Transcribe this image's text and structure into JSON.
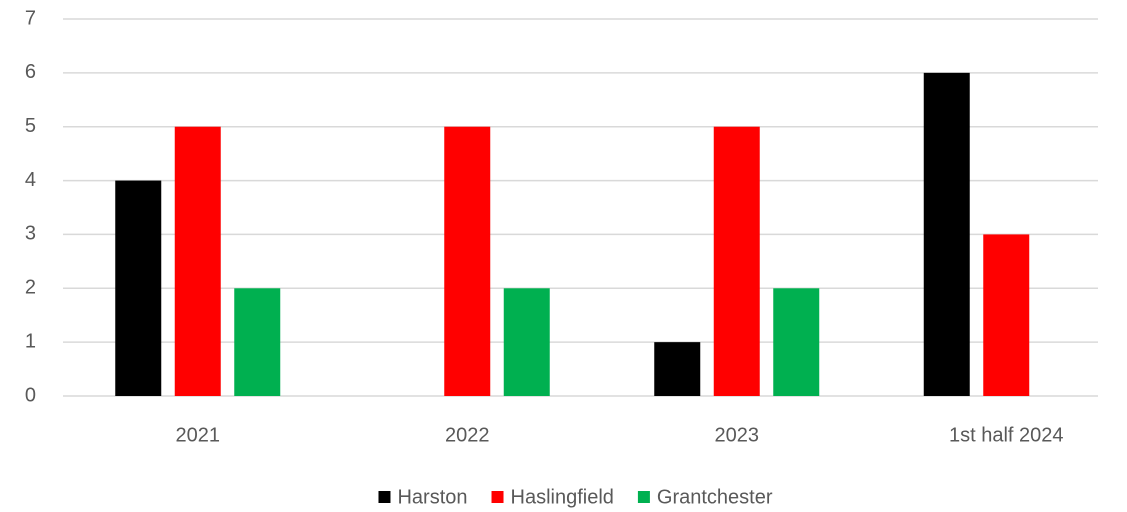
{
  "chart_data": {
    "type": "bar",
    "categories": [
      "2021",
      "2022",
      "2023",
      "1st half 2024"
    ],
    "series": [
      {
        "name": "Harston",
        "color": "#000000",
        "values": [
          4,
          0,
          1,
          6
        ]
      },
      {
        "name": "Haslingfield",
        "color": "#ff0000",
        "values": [
          5,
          5,
          5,
          3
        ]
      },
      {
        "name": "Grantchester",
        "color": "#00b050",
        "values": [
          2,
          2,
          2,
          0
        ]
      }
    ],
    "ylim": [
      0,
      7
    ],
    "yticks": [
      0,
      1,
      2,
      3,
      4,
      5,
      6,
      7
    ],
    "grid": true,
    "legend": "bottom"
  }
}
